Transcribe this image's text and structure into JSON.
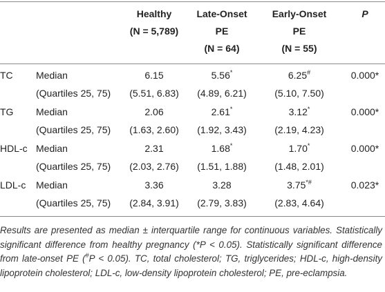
{
  "table": {
    "columns": [
      {
        "lines": [
          "Healthy",
          "(N = 5,789)"
        ]
      },
      {
        "lines": [
          "Late-Onset",
          "PE",
          "(N = 64)"
        ]
      },
      {
        "lines": [
          "Early-Onset",
          "PE",
          "(N = 55)"
        ]
      }
    ],
    "p_header": "P",
    "variables": [
      {
        "name": "TC",
        "median": {
          "label": "Median",
          "values": [
            {
              "value": "6.15"
            },
            {
              "value": "5.56",
              "sup": "*"
            },
            {
              "value": "6.25",
              "sup": "#"
            }
          ],
          "p": "0.000*"
        },
        "quartiles": {
          "label": "(Quartiles 25, 75)",
          "values": [
            {
              "value": "(5.51, 6.83)"
            },
            {
              "value": "(4.89, 6.21)"
            },
            {
              "value": "(5.10, 7.50)"
            }
          ]
        }
      },
      {
        "name": "TG",
        "median": {
          "label": "Median",
          "values": [
            {
              "value": "2.06"
            },
            {
              "value": "2.61",
              "sup": "*"
            },
            {
              "value": "3.12",
              "sup": "*"
            }
          ],
          "p": "0.000*"
        },
        "quartiles": {
          "label": "(Quartiles 25, 75)",
          "values": [
            {
              "value": "(1.63, 2.60)"
            },
            {
              "value": "(1.92, 3.43)"
            },
            {
              "value": "(2.19, 4.23)"
            }
          ]
        }
      },
      {
        "name": "HDL-c",
        "median": {
          "label": "Median",
          "values": [
            {
              "value": "2.31"
            },
            {
              "value": "1.68",
              "sup": "*"
            },
            {
              "value": "1.70",
              "sup": "*"
            }
          ],
          "p": "0.000*"
        },
        "quartiles": {
          "label": "(Quartiles 25, 75)",
          "values": [
            {
              "value": "(2.03, 2.76)"
            },
            {
              "value": "(1.51, 1.88)"
            },
            {
              "value": "(1.48, 2.01)"
            }
          ]
        }
      },
      {
        "name": "LDL-c",
        "median": {
          "label": "Median",
          "values": [
            {
              "value": "3.36"
            },
            {
              "value": "3.28"
            },
            {
              "value": "3.75",
              "sup": "*#"
            }
          ],
          "p": "0.023*"
        },
        "quartiles": {
          "label": "(Quartiles 25, 75)",
          "values": [
            {
              "value": "(2.84, 3.91)"
            },
            {
              "value": "(2.79, 3.83)"
            },
            {
              "value": "(2.83, 4.64)"
            }
          ]
        }
      }
    ],
    "footnote": [
      {
        "text": "Results are presented as median ± interquartile range for continuous variables. Statistically significant difference from healthy pregnancy (*P < 0.05). Statistically significant difference from late-onset PE ("
      },
      {
        "text": "#",
        "sup": true
      },
      {
        "text": "P < 0.05). TC, total cholesterol; TG, triglycerides; HDL-c, high-density lipoprotein cholesterol; LDL-c, low-density lipoprotein cholesterol; PE, pre-eclampsia."
      }
    ]
  }
}
